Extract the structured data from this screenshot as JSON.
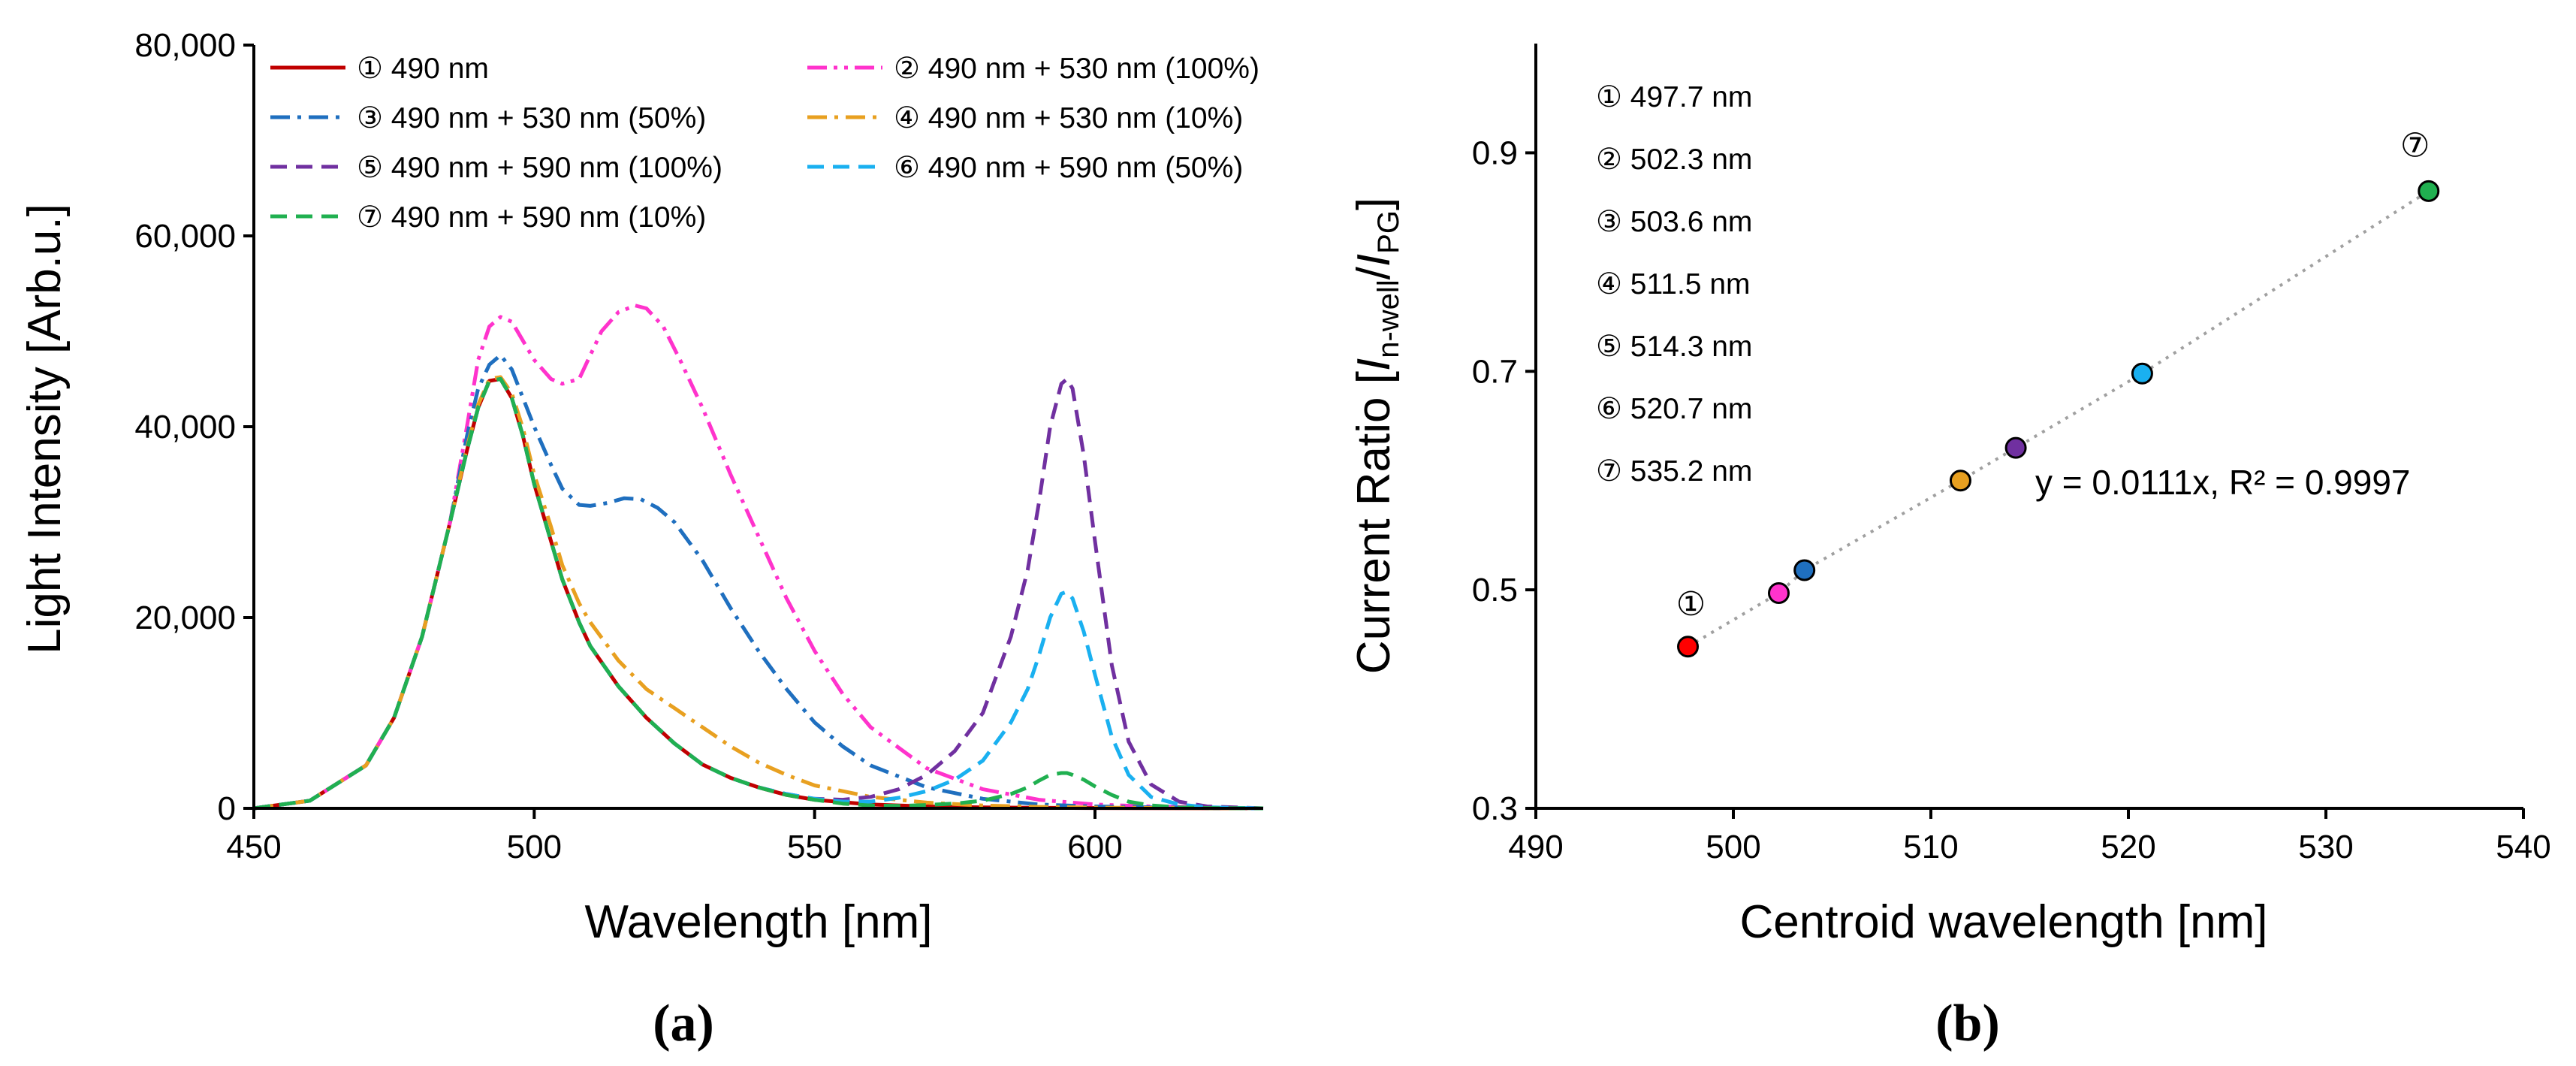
{
  "chart_data": [
    {
      "type": "line",
      "panel_label": "(a)",
      "xlabel": "Wavelength [nm]",
      "ylabel": "Light Intensity [Arb.u.]",
      "xlim": [
        450,
        630
      ],
      "ylim": [
        0,
        80000
      ],
      "xticks": [
        450,
        500,
        550,
        600
      ],
      "xtick_labels": [
        "450",
        "500",
        "550",
        "600"
      ],
      "yticks": [
        0,
        20000,
        40000,
        60000,
        80000
      ],
      "ytick_labels": [
        "0",
        "20,000",
        "40,000",
        "60,000",
        "80,000"
      ],
      "grid": false,
      "legend_position": "top-left",
      "series": [
        {
          "name": "① 490 nm",
          "color": "#c00000",
          "dash": "solid",
          "x": [
            450,
            460,
            470,
            475,
            480,
            485,
            488,
            490,
            492,
            494,
            496,
            498,
            500,
            503,
            505,
            508,
            510,
            515,
            520,
            525,
            530,
            535,
            540,
            545,
            550,
            560,
            570,
            580,
            590,
            600,
            610,
            620,
            630
          ],
          "y": [
            0,
            800,
            4500,
            9500,
            18000,
            30000,
            37500,
            42000,
            44800,
            45000,
            43000,
            39000,
            34000,
            28000,
            24000,
            19500,
            17000,
            12800,
            9500,
            6800,
            4600,
            3200,
            2200,
            1400,
            900,
            400,
            200,
            100,
            50,
            30,
            20,
            10,
            0
          ]
        },
        {
          "name": "② 490 nm + 530 nm (100%)",
          "color": "#ff33cc",
          "dash": "dashdotdot",
          "x": [
            450,
            460,
            470,
            475,
            480,
            485,
            488,
            490,
            492,
            494,
            496,
            498,
            500,
            503,
            505,
            508,
            510,
            512,
            515,
            518,
            520,
            523,
            526,
            530,
            535,
            540,
            545,
            550,
            555,
            560,
            570,
            580,
            590,
            600,
            610,
            620,
            630
          ],
          "y": [
            0,
            800,
            4500,
            9500,
            18000,
            30000,
            40000,
            47000,
            50500,
            51500,
            51000,
            49000,
            47000,
            45000,
            44500,
            45000,
            47500,
            50000,
            52000,
            52700,
            52400,
            50500,
            47000,
            42000,
            35000,
            28500,
            22000,
            16500,
            12000,
            8500,
            4200,
            2000,
            900,
            400,
            200,
            100,
            0
          ]
        },
        {
          "name": "③ 490 nm + 530 nm (50%)",
          "color": "#1f6fbf",
          "dash": "dashdot",
          "x": [
            450,
            460,
            470,
            475,
            480,
            485,
            488,
            490,
            492,
            494,
            496,
            498,
            500,
            503,
            505,
            508,
            510,
            513,
            516,
            519,
            522,
            525,
            530,
            535,
            540,
            545,
            550,
            555,
            560,
            570,
            580,
            590,
            600,
            610,
            620,
            630
          ],
          "y": [
            0,
            800,
            4500,
            9500,
            18000,
            30000,
            39000,
            44000,
            46500,
            47500,
            46000,
            43000,
            40000,
            36000,
            33500,
            31800,
            31700,
            32000,
            32500,
            32400,
            31500,
            30000,
            26000,
            21000,
            16500,
            12500,
            9000,
            6500,
            4500,
            2200,
            1000,
            400,
            200,
            100,
            50,
            0
          ]
        },
        {
          "name": "④ 490 nm + 530 nm (10%)",
          "color": "#e8a020",
          "dash": "dashdot",
          "x": [
            450,
            460,
            470,
            475,
            480,
            485,
            488,
            490,
            492,
            494,
            496,
            498,
            500,
            503,
            505,
            508,
            510,
            515,
            520,
            525,
            530,
            535,
            540,
            545,
            550,
            560,
            570,
            580,
            590,
            600,
            610,
            620,
            630
          ],
          "y": [
            0,
            800,
            4500,
            9500,
            18000,
            30000,
            37800,
            42300,
            45000,
            45200,
            43500,
            39800,
            35000,
            29500,
            25500,
            21500,
            19500,
            15500,
            12500,
            10500,
            8500,
            6500,
            4800,
            3500,
            2400,
            1200,
            600,
            300,
            150,
            80,
            40,
            20,
            0
          ]
        },
        {
          "name": "⑤ 490 nm + 590 nm (100%)",
          "color": "#7030a0",
          "dash": "dashed",
          "x": [
            450,
            460,
            470,
            475,
            480,
            485,
            488,
            490,
            492,
            494,
            496,
            498,
            500,
            503,
            505,
            508,
            510,
            515,
            520,
            525,
            530,
            535,
            540,
            545,
            550,
            555,
            560,
            565,
            570,
            575,
            580,
            585,
            588,
            590,
            592,
            594,
            595,
            596,
            598,
            600,
            603,
            606,
            610,
            615,
            620,
            630
          ],
          "y": [
            0,
            800,
            4500,
            9500,
            18000,
            30000,
            37500,
            42000,
            44800,
            45000,
            43000,
            39000,
            34000,
            28000,
            24000,
            19500,
            17000,
            12800,
            9500,
            6800,
            4600,
            3200,
            2200,
            1500,
            1000,
            900,
            1200,
            2000,
            3500,
            6000,
            10000,
            18000,
            25000,
            32000,
            40000,
            44500,
            45000,
            44000,
            37000,
            28000,
            15000,
            7000,
            2500,
            700,
            200,
            0
          ]
        },
        {
          "name": "⑥ 490 nm + 590 nm (50%)",
          "color": "#1ab0f0",
          "dash": "dashed",
          "x": [
            450,
            460,
            470,
            475,
            480,
            485,
            488,
            490,
            492,
            494,
            496,
            498,
            500,
            503,
            505,
            508,
            510,
            515,
            520,
            525,
            530,
            535,
            540,
            545,
            550,
            555,
            560,
            565,
            570,
            575,
            580,
            585,
            588,
            590,
            592,
            594,
            595,
            596,
            598,
            600,
            603,
            606,
            610,
            615,
            620,
            630
          ],
          "y": [
            0,
            800,
            4500,
            9500,
            18000,
            30000,
            37500,
            42000,
            44800,
            45000,
            43000,
            39000,
            34000,
            28000,
            24000,
            19500,
            17000,
            12800,
            9500,
            6800,
            4600,
            3200,
            2200,
            1500,
            1000,
            700,
            700,
            1100,
            1800,
            3000,
            5000,
            9000,
            12500,
            16000,
            20000,
            22500,
            22700,
            22000,
            18500,
            14000,
            7500,
            3500,
            1200,
            400,
            100,
            0
          ]
        },
        {
          "name": "⑦ 490 nm + 590 nm (10%)",
          "color": "#20b050",
          "dash": "dashed",
          "x": [
            450,
            460,
            470,
            475,
            480,
            485,
            488,
            490,
            492,
            494,
            496,
            498,
            500,
            503,
            505,
            508,
            510,
            515,
            520,
            525,
            530,
            535,
            540,
            545,
            550,
            555,
            560,
            565,
            570,
            575,
            580,
            585,
            588,
            590,
            592,
            594,
            595,
            596,
            598,
            600,
            603,
            606,
            610,
            615,
            620,
            630
          ],
          "y": [
            0,
            800,
            4500,
            9500,
            18000,
            30000,
            37500,
            42000,
            44800,
            45000,
            43000,
            39000,
            34000,
            28000,
            24000,
            19500,
            17000,
            12800,
            9500,
            6800,
            4600,
            3200,
            2200,
            1400,
            900,
            500,
            300,
            250,
            350,
            500,
            800,
            1500,
            2200,
            2900,
            3500,
            3700,
            3700,
            3500,
            3000,
            2300,
            1400,
            700,
            300,
            100,
            30,
            0
          ]
        }
      ]
    },
    {
      "type": "scatter",
      "panel_label": "(b)",
      "xlabel": "Centroid wavelength [nm]",
      "ylabel_parts": [
        "Current Ratio [",
        "I",
        "n-well",
        "/",
        "I",
        "PG",
        "]"
      ],
      "xlim": [
        490,
        540
      ],
      "ylim": [
        0.3,
        1.0
      ],
      "xticks": [
        490,
        500,
        510,
        520,
        530,
        540
      ],
      "xtick_labels": [
        "490",
        "500",
        "510",
        "520",
        "530",
        "540"
      ],
      "yticks": [
        0.3,
        0.5,
        0.7,
        0.9
      ],
      "ytick_labels": [
        "0.3",
        "0.5",
        "0.7",
        "0.9"
      ],
      "grid": false,
      "trendline": {
        "slope": 0.0111,
        "x_range": [
          497.7,
          535.2
        ],
        "color": "#a0a0a0",
        "dash": "dotted"
      },
      "equation": "y = 0.0111x, R² = 0.9997",
      "points": [
        {
          "label": "①",
          "x": 497.7,
          "y": 0.448,
          "color": "#ff0000"
        },
        {
          "label": "②",
          "x": 502.3,
          "y": 0.497,
          "color": "#ff33cc"
        },
        {
          "label": "③",
          "x": 503.6,
          "y": 0.518,
          "color": "#1f6fbf"
        },
        {
          "label": "④",
          "x": 511.5,
          "y": 0.6,
          "color": "#e8a020"
        },
        {
          "label": "⑤",
          "x": 514.3,
          "y": 0.63,
          "color": "#7030a0"
        },
        {
          "label": "⑥",
          "x": 520.7,
          "y": 0.698,
          "color": "#1ab0f0"
        },
        {
          "label": "⑦",
          "x": 535.2,
          "y": 0.865,
          "color": "#20b050"
        }
      ],
      "point_markers": [
        "①",
        "⑦"
      ],
      "notes": [
        "① 497.7 nm",
        "② 502.3 nm",
        "③ 503.6 nm",
        "④ 511.5 nm",
        "⑤ 514.3 nm",
        "⑥ 520.7 nm",
        "⑦ 535.2 nm"
      ]
    }
  ]
}
